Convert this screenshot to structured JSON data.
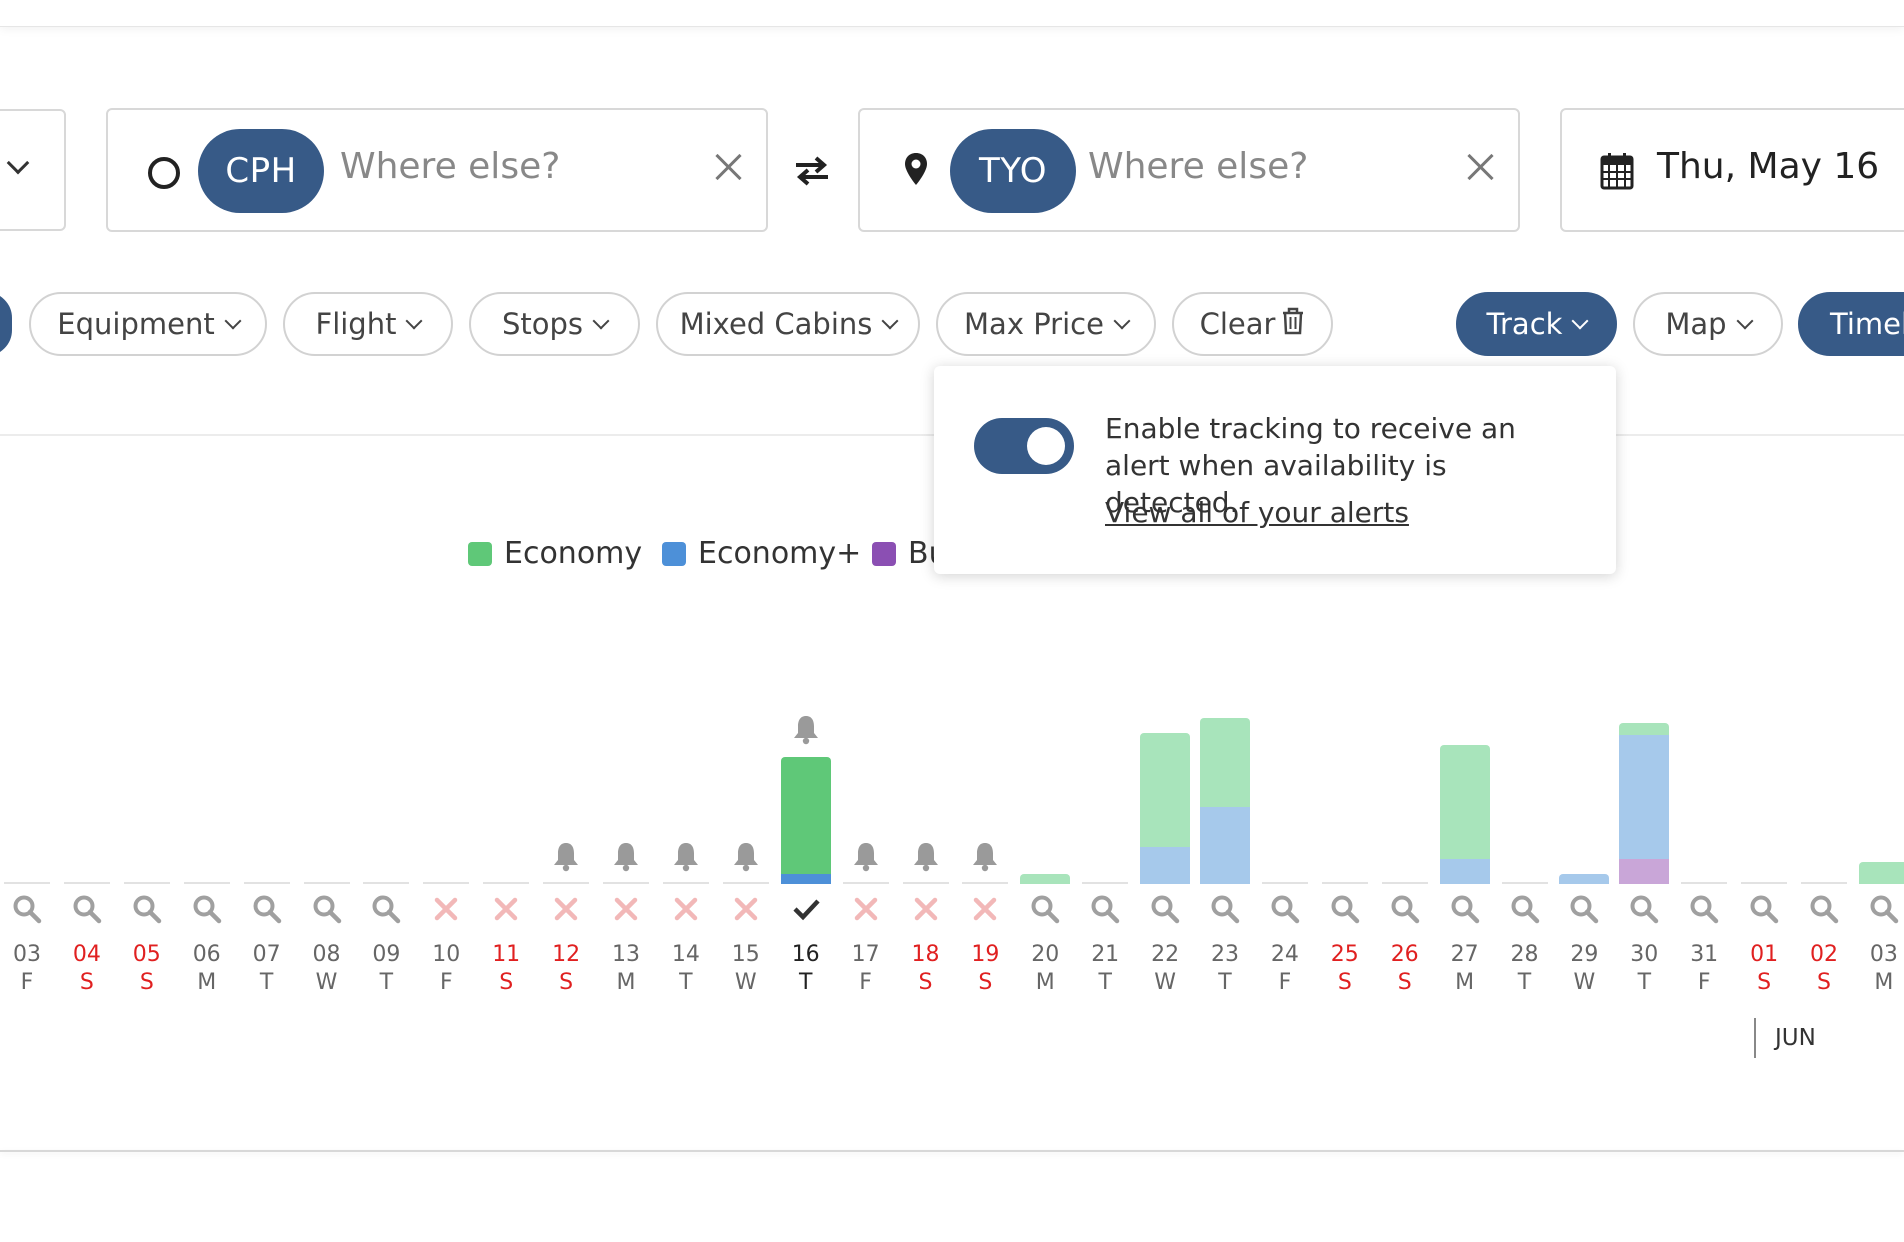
{
  "search": {
    "origin_code": "CPH",
    "origin_placeholder": "Where else?",
    "destination_code": "TYO",
    "destination_placeholder": "Where else?",
    "date": "Thu, May 16"
  },
  "filters": {
    "equipment": "Equipment",
    "flight": "Flight",
    "stops": "Stops",
    "mixed_cabins": "Mixed Cabins",
    "max_price": "Max Price",
    "clear": "Clear",
    "track": "Track",
    "map": "Map",
    "timeline": "Timel"
  },
  "popover": {
    "text": "Enable tracking to receive an alert when availability is detected.",
    "link": "View all of your alerts",
    "toggle_on": true
  },
  "legend": [
    {
      "label": "Economy",
      "color": "#5fc878"
    },
    {
      "label": "Economy+",
      "color": "#4d90d8"
    },
    {
      "label": "Bu",
      "color": "#8b4fb3"
    }
  ],
  "colors": {
    "accent": "#375a87",
    "economy": "#5fc878",
    "economy_light": "#a8e4bb",
    "economy_plus": "#4d90d8",
    "economy_plus_light": "#a6c9eb",
    "business_light": "#c9a6d8",
    "weekend": "#e02020"
  },
  "chart_data": {
    "type": "bar",
    "x": [
      "03",
      "04",
      "05",
      "06",
      "07",
      "08",
      "09",
      "10",
      "11",
      "12",
      "13",
      "14",
      "15",
      "16",
      "17",
      "18",
      "19",
      "20",
      "21",
      "22",
      "23",
      "24",
      "25",
      "26",
      "27",
      "28",
      "29",
      "30",
      "31",
      "01",
      "02",
      "03"
    ],
    "weekdays": [
      "F",
      "S",
      "S",
      "M",
      "T",
      "W",
      "T",
      "F",
      "S",
      "S",
      "M",
      "T",
      "W",
      "T",
      "F",
      "S",
      "S",
      "M",
      "T",
      "W",
      "T",
      "F",
      "S",
      "S",
      "M",
      "T",
      "W",
      "T",
      "F",
      "S",
      "S",
      "M"
    ],
    "weekend": [
      false,
      true,
      true,
      false,
      false,
      false,
      false,
      false,
      true,
      true,
      false,
      false,
      false,
      false,
      false,
      true,
      true,
      false,
      false,
      false,
      false,
      false,
      true,
      true,
      false,
      false,
      false,
      false,
      false,
      true,
      true,
      false
    ],
    "status_icons": [
      "search",
      "search",
      "search",
      "search",
      "search",
      "search",
      "search",
      "none",
      "none",
      "none",
      "none",
      "none",
      "none",
      "check",
      "none",
      "none",
      "none",
      "search",
      "search",
      "search",
      "search",
      "search",
      "search",
      "search",
      "search",
      "search",
      "search",
      "search",
      "search",
      "search",
      "search",
      "search"
    ],
    "bells": [
      false,
      false,
      false,
      false,
      false,
      false,
      false,
      false,
      false,
      true,
      true,
      true,
      true,
      true,
      true,
      true,
      true,
      false,
      false,
      false,
      false,
      false,
      false,
      false,
      false,
      false,
      false,
      false,
      false,
      false,
      false,
      false
    ],
    "selected_index": 13,
    "series": [
      {
        "name": "Economy+",
        "values": [
          0,
          0,
          0,
          0,
          0,
          0,
          0,
          0,
          0,
          0,
          0,
          0,
          0,
          0.08,
          0,
          0,
          0,
          0,
          0,
          0.3,
          0.62,
          0,
          0,
          0,
          0.2,
          0,
          0.08,
          1.0,
          0,
          0,
          0,
          0
        ]
      },
      {
        "name": "Economy",
        "values": [
          0,
          0,
          0,
          0,
          0,
          0,
          0,
          0,
          0,
          0,
          0,
          0,
          0,
          0.94,
          0,
          0,
          0,
          0.08,
          0,
          0.92,
          0.72,
          0,
          0,
          0,
          0.92,
          0,
          0,
          0.1,
          0,
          0,
          0,
          0.18
        ]
      },
      {
        "name": "Bu",
        "values": [
          0,
          0,
          0,
          0,
          0,
          0,
          0,
          0,
          0,
          0,
          0,
          0,
          0,
          0,
          0,
          0,
          0,
          0,
          0,
          0,
          0,
          0,
          0,
          0,
          0,
          0,
          0,
          0.2,
          0,
          0,
          0,
          0
        ]
      }
    ],
    "month_label": "JUN",
    "ylim": [
      0,
      1.4
    ]
  }
}
